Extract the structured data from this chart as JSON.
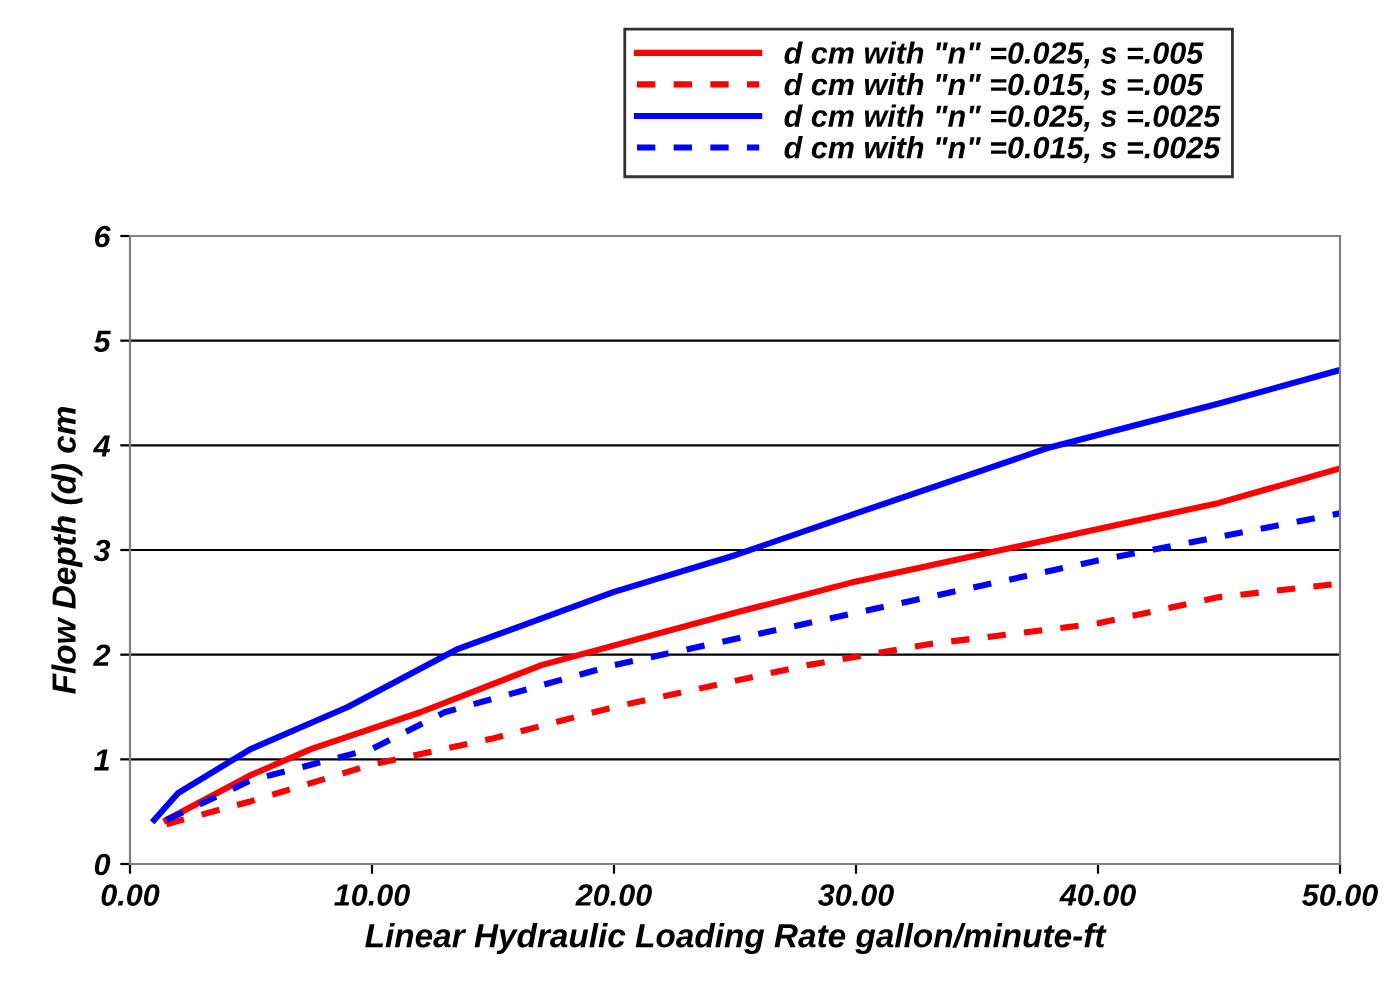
{
  "chart_data": {
    "type": "line",
    "xlabel": "Linear Hydraulic Loading Rate gallon/minute-ft",
    "ylabel": "Flow Depth (d) cm",
    "xlim": [
      0,
      50
    ],
    "ylim": [
      0,
      6
    ],
    "xticks": [
      {
        "value": 0,
        "label": "0.00"
      },
      {
        "value": 10,
        "label": "10.00"
      },
      {
        "value": 20,
        "label": "20.00"
      },
      {
        "value": 30,
        "label": "30.00"
      },
      {
        "value": 40,
        "label": "40.00"
      },
      {
        "value": 50,
        "label": "50.00"
      }
    ],
    "yticks": [
      0,
      1,
      2,
      3,
      4,
      5,
      6
    ],
    "grid": "y",
    "legend": "top",
    "series": [
      {
        "name": "d cm with \"n\" =0.025, s =.005",
        "color": "#ff0000",
        "line_style": "solid",
        "x": [
          1.5,
          5,
          7.5,
          12,
          17,
          25,
          30,
          40,
          45,
          50
        ],
        "values": [
          0.42,
          0.85,
          1.1,
          1.45,
          1.9,
          2.4,
          2.7,
          3.2,
          3.45,
          3.78
        ]
      },
      {
        "name": "d cm with \"n\" =0.015, s =.005",
        "color": "#ff0000",
        "line_style": "dashed",
        "x": [
          1.5,
          5,
          10,
          15,
          20,
          28,
          33,
          40,
          45,
          50
        ],
        "values": [
          0.38,
          0.6,
          0.95,
          1.2,
          1.5,
          1.9,
          2.1,
          2.3,
          2.55,
          2.68
        ]
      },
      {
        "name": "d cm with \"n\" =0.025, s =.0025",
        "color": "#0000ff",
        "line_style": "solid",
        "x": [
          1,
          2,
          5,
          9,
          13.5,
          20,
          25,
          30,
          38,
          45,
          50
        ],
        "values": [
          0.42,
          0.68,
          1.1,
          1.5,
          2.05,
          2.6,
          2.95,
          3.35,
          3.98,
          4.4,
          4.72
        ]
      },
      {
        "name": "d cm with \"n\" =0.015, s =.0025",
        "color": "#0000ff",
        "line_style": "dashed",
        "x": [
          1.5,
          5,
          10,
          13,
          20,
          30,
          40,
          50
        ],
        "values": [
          0.42,
          0.8,
          1.1,
          1.45,
          1.9,
          2.4,
          2.9,
          3.35
        ]
      }
    ]
  }
}
